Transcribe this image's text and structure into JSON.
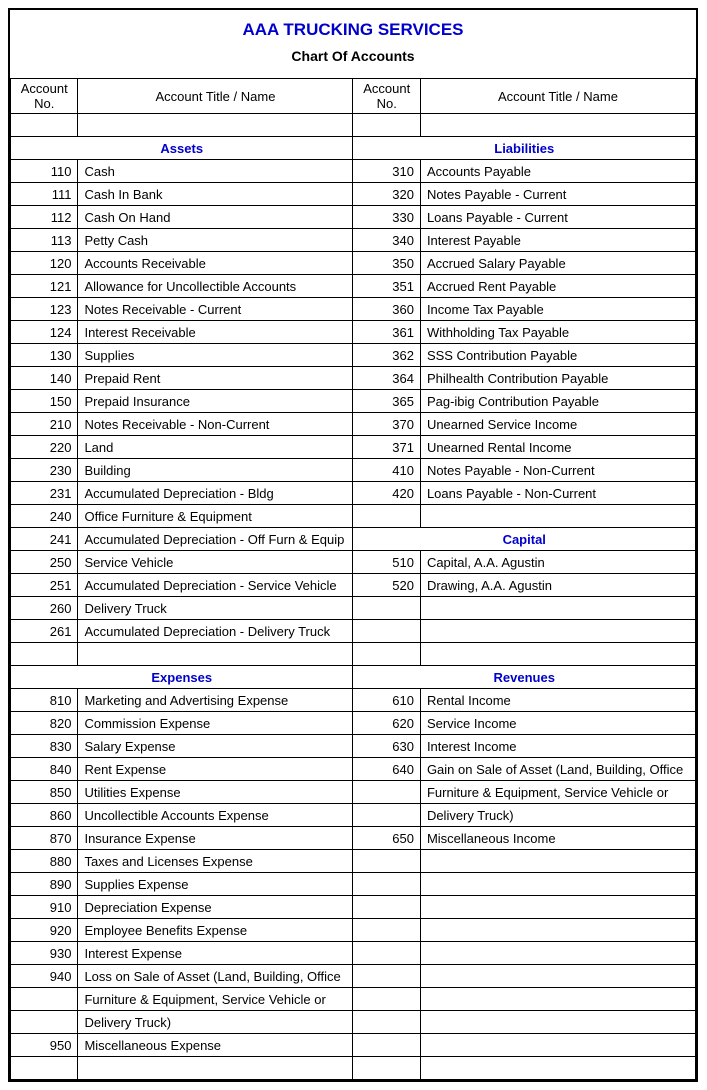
{
  "company": "AAA TRUCKING SERVICES",
  "subtitle": "Chart Of Accounts",
  "headers": {
    "acct_no": "Account No.",
    "acct_title": "Account Title / Name"
  },
  "sections": {
    "assets": "Assets",
    "liabilities": "Liabilities",
    "capital": "Capital",
    "expenses": "Expenses",
    "revenues": "Revenues"
  },
  "assets": [
    {
      "no": "110",
      "name": "Cash"
    },
    {
      "no": "111",
      "name": "Cash In Bank"
    },
    {
      "no": "112",
      "name": "Cash On Hand"
    },
    {
      "no": "113",
      "name": "Petty Cash"
    },
    {
      "no": "120",
      "name": "Accounts Receivable"
    },
    {
      "no": "121",
      "name": "Allowance for Uncollectible Accounts"
    },
    {
      "no": "123",
      "name": "Notes Receivable - Current"
    },
    {
      "no": "124",
      "name": "Interest Receivable"
    },
    {
      "no": "130",
      "name": "Supplies"
    },
    {
      "no": "140",
      "name": "Prepaid Rent"
    },
    {
      "no": "150",
      "name": "Prepaid Insurance"
    },
    {
      "no": "210",
      "name": "Notes Receivable - Non-Current"
    },
    {
      "no": "220",
      "name": "Land"
    },
    {
      "no": "230",
      "name": "Building"
    },
    {
      "no": "231",
      "name": "Accumulated Depreciation - Bldg"
    },
    {
      "no": "240",
      "name": "Office Furniture & Equipment"
    },
    {
      "no": "241",
      "name": "Accumulated Depreciation - Off Furn & Equip"
    },
    {
      "no": "250",
      "name": "Service Vehicle"
    },
    {
      "no": "251",
      "name": "Accumulated Depreciation - Service Vehicle"
    },
    {
      "no": "260",
      "name": "Delivery Truck"
    },
    {
      "no": "261",
      "name": "Accumulated Depreciation - Delivery Truck"
    }
  ],
  "liabilities": [
    {
      "no": "310",
      "name": "Accounts Payable"
    },
    {
      "no": "320",
      "name": "Notes Payable - Current"
    },
    {
      "no": "330",
      "name": "Loans Payable - Current"
    },
    {
      "no": "340",
      "name": "Interest Payable"
    },
    {
      "no": "350",
      "name": "Accrued Salary Payable"
    },
    {
      "no": "351",
      "name": "Accrued Rent Payable"
    },
    {
      "no": "360",
      "name": "Income Tax Payable"
    },
    {
      "no": "361",
      "name": "Withholding Tax Payable"
    },
    {
      "no": "362",
      "name": "SSS Contribution Payable"
    },
    {
      "no": "364",
      "name": "Philhealth Contribution Payable"
    },
    {
      "no": "365",
      "name": "Pag-ibig Contribution Payable"
    },
    {
      "no": "370",
      "name": "Unearned Service Income"
    },
    {
      "no": "371",
      "name": "Unearned Rental Income"
    },
    {
      "no": "410",
      "name": "Notes Payable - Non-Current"
    },
    {
      "no": "420",
      "name": "Loans Payable - Non-Current"
    }
  ],
  "capital": [
    {
      "no": "510",
      "name": "Capital, A.A. Agustin"
    },
    {
      "no": "520",
      "name": "Drawing, A.A. Agustin"
    }
  ],
  "expenses": [
    {
      "no": "810",
      "name": "Marketing and Advertising Expense"
    },
    {
      "no": "820",
      "name": "Commission Expense"
    },
    {
      "no": "830",
      "name": "Salary Expense"
    },
    {
      "no": "840",
      "name": "Rent Expense"
    },
    {
      "no": "850",
      "name": "Utilities Expense"
    },
    {
      "no": "860",
      "name": "Uncollectible Accounts Expense"
    },
    {
      "no": "870",
      "name": "Insurance Expense"
    },
    {
      "no": "880",
      "name": "Taxes and Licenses Expense"
    },
    {
      "no": "890",
      "name": "Supplies Expense"
    },
    {
      "no": "910",
      "name": "Depreciation Expense"
    },
    {
      "no": "920",
      "name": "Employee Benefits Expense"
    },
    {
      "no": "930",
      "name": "Interest Expense"
    },
    {
      "no": "940",
      "name": "Loss on Sale of Asset (Land, Building, Office Furniture & Equipment, Service Vehicle or Delivery Truck)"
    },
    {
      "no": "950",
      "name": "Miscellaneous Expense"
    }
  ],
  "revenues": [
    {
      "no": "610",
      "name": "Rental Income"
    },
    {
      "no": "620",
      "name": "Service Income"
    },
    {
      "no": "630",
      "name": "Interest Income"
    },
    {
      "no": "640",
      "name": "Gain on Sale of Asset (Land, Building, Office Furniture & Equipment, Service Vehicle or Delivery Truck)"
    },
    {
      "no": "650",
      "name": "Miscellaneous Income"
    }
  ],
  "style": {
    "heading_color": "#0000cc",
    "border_color": "#000000",
    "font_family": "Arial",
    "base_fontsize": 13,
    "company_fontsize": 17,
    "subtitle_fontsize": 14
  }
}
